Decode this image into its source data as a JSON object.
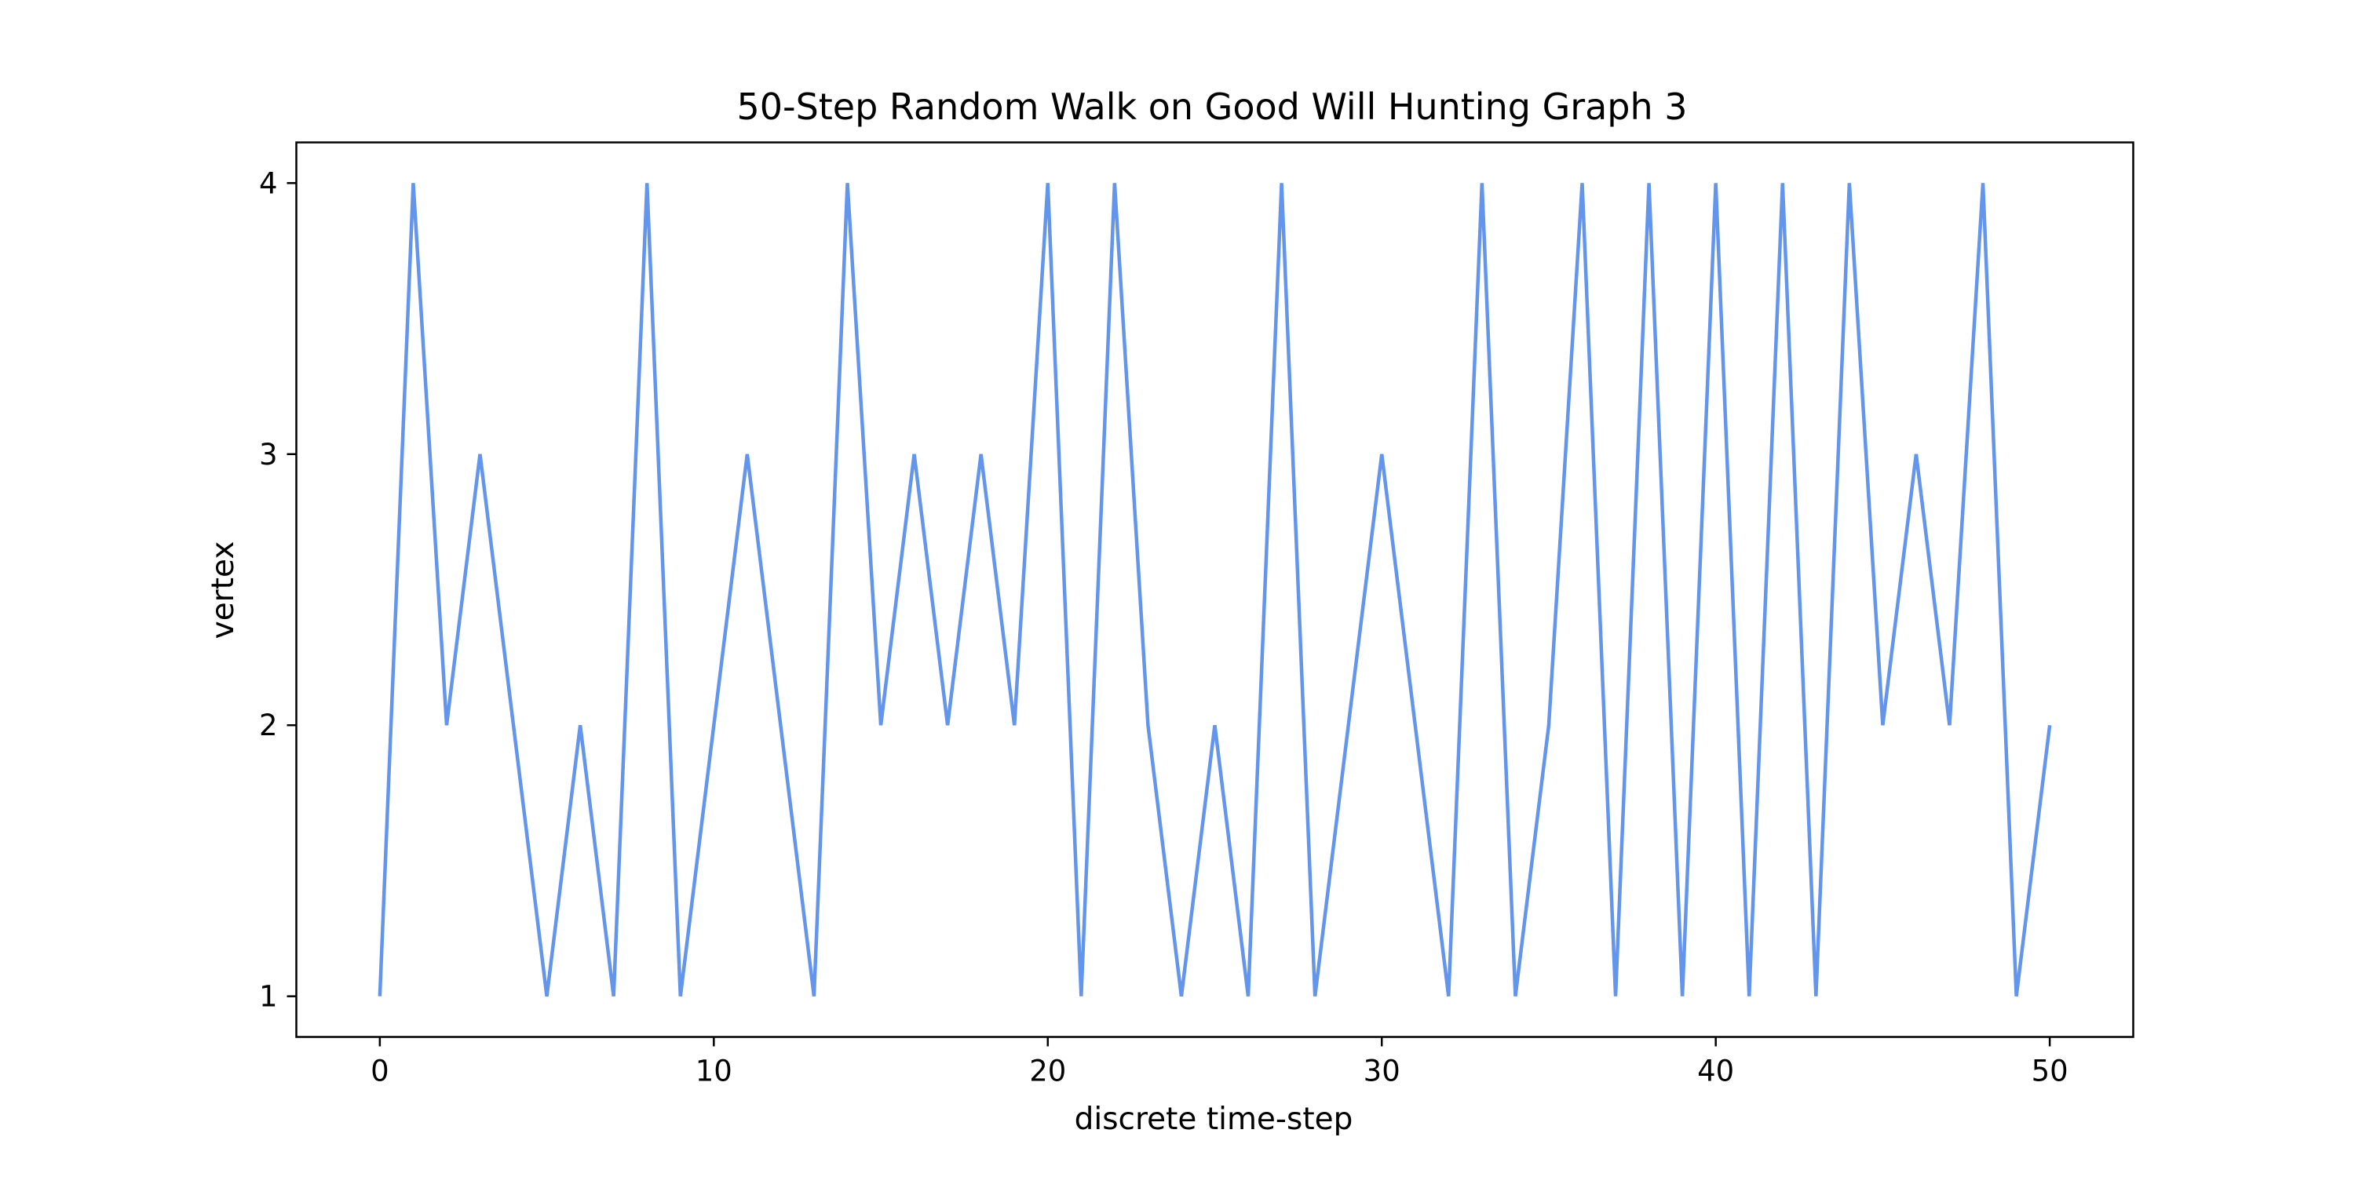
{
  "chart_data": {
    "type": "line",
    "title": "50-Step Random Walk on Good Will Hunting Graph 3",
    "xlabel": "discrete time-step",
    "ylabel": "vertex",
    "xlim": [
      -2.5,
      52.5
    ],
    "ylim": [
      0.85,
      4.15
    ],
    "xticks": [
      0,
      10,
      20,
      30,
      40,
      50
    ],
    "yticks": [
      1,
      2,
      3,
      4
    ],
    "grid": false,
    "legend": "none",
    "series": [
      {
        "name": "random walk",
        "color": "#6495ED",
        "x": [
          0,
          1,
          2,
          3,
          4,
          5,
          6,
          7,
          8,
          9,
          10,
          11,
          12,
          13,
          14,
          15,
          16,
          17,
          18,
          19,
          20,
          21,
          22,
          23,
          24,
          25,
          26,
          27,
          28,
          29,
          30,
          31,
          32,
          33,
          34,
          35,
          36,
          37,
          38,
          39,
          40,
          41,
          42,
          43,
          44,
          45,
          46,
          47,
          48,
          49,
          50
        ],
        "y": [
          1,
          4,
          2,
          3,
          2,
          1,
          2,
          1,
          4,
          1,
          2,
          3,
          2,
          1,
          4,
          2,
          3,
          2,
          3,
          2,
          4,
          1,
          4,
          2,
          1,
          2,
          1,
          4,
          1,
          2,
          3,
          2,
          1,
          4,
          1,
          2,
          4,
          1,
          4,
          1,
          4,
          1,
          4,
          1,
          4,
          2,
          3,
          2,
          4,
          1,
          2
        ]
      }
    ]
  }
}
